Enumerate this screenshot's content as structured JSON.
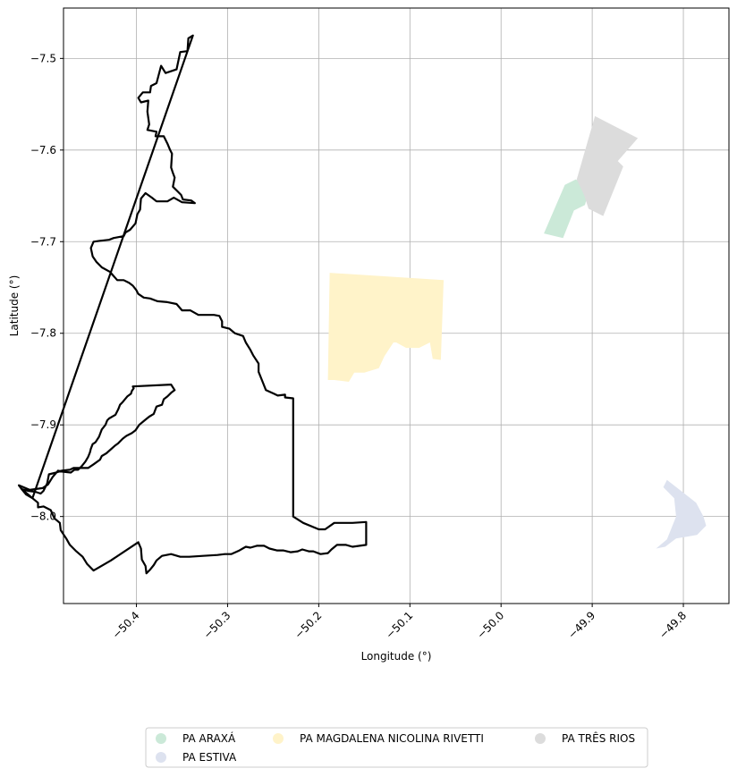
{
  "chart_data": {
    "type": "map",
    "xlabel": "Longitude (°)",
    "ylabel": "Latitude (°)",
    "xlim": [
      -50.48,
      -49.75
    ],
    "ylim": [
      -8.095,
      -7.445
    ],
    "x_ticks": [
      {
        "value": -50.4,
        "label": "−50.4"
      },
      {
        "value": -50.3,
        "label": "−50.3"
      },
      {
        "value": -50.2,
        "label": "−50.2"
      },
      {
        "value": -50.1,
        "label": "−50.1"
      },
      {
        "value": -50.0,
        "label": "−50.0"
      },
      {
        "value": -49.9,
        "label": "−49.9"
      },
      {
        "value": -49.8,
        "label": "−49.8"
      }
    ],
    "y_ticks": [
      {
        "value": -7.5,
        "label": "−7.5"
      },
      {
        "value": -7.6,
        "label": "−7.6"
      },
      {
        "value": -7.7,
        "label": "−7.7"
      },
      {
        "value": -7.8,
        "label": "−7.8"
      },
      {
        "value": -7.9,
        "label": "−7.9"
      },
      {
        "value": -8.0,
        "label": "−8.0"
      }
    ],
    "grid": true,
    "legend_position": "bottom-center",
    "boundary": {
      "color": "#000000",
      "points": [
        [
          -50.338,
          -7.475
        ],
        [
          -50.343,
          -7.478
        ],
        [
          -50.344,
          -7.492
        ],
        [
          -50.352,
          -7.493
        ],
        [
          -50.356,
          -7.512
        ],
        [
          -50.368,
          -7.516
        ],
        [
          -50.373,
          -7.508
        ],
        [
          -50.378,
          -7.527
        ],
        [
          -50.384,
          -7.53
        ],
        [
          -50.385,
          -7.537
        ],
        [
          -50.393,
          -7.537
        ],
        [
          -50.398,
          -7.543
        ],
        [
          -50.395,
          -7.548
        ],
        [
          -50.387,
          -7.546
        ],
        [
          -50.388,
          -7.558
        ],
        [
          -50.386,
          -7.572
        ],
        [
          -50.388,
          -7.578
        ],
        [
          -50.378,
          -7.58
        ],
        [
          -50.379,
          -7.585
        ],
        [
          -50.37,
          -7.585
        ],
        [
          -50.366,
          -7.593
        ],
        [
          -50.363,
          -7.6
        ],
        [
          -50.361,
          -7.604
        ],
        [
          -50.362,
          -7.619
        ],
        [
          -50.36,
          -7.625
        ],
        [
          -50.358,
          -7.63
        ],
        [
          -50.36,
          -7.64
        ],
        [
          -50.355,
          -7.645
        ],
        [
          -50.351,
          -7.649
        ],
        [
          -50.349,
          -7.654
        ],
        [
          -50.34,
          -7.655
        ],
        [
          -50.336,
          -7.658
        ],
        [
          -50.35,
          -7.657
        ],
        [
          -50.359,
          -7.652
        ],
        [
          -50.366,
          -7.656
        ],
        [
          -50.378,
          -7.656
        ],
        [
          -50.383,
          -7.652
        ],
        [
          -50.39,
          -7.647
        ],
        [
          -50.395,
          -7.653
        ],
        [
          -50.396,
          -7.665
        ],
        [
          -50.399,
          -7.67
        ],
        [
          -50.401,
          -7.68
        ],
        [
          -50.407,
          -7.687
        ],
        [
          -50.412,
          -7.69
        ],
        [
          -50.414,
          -7.694
        ],
        [
          -50.425,
          -7.696
        ],
        [
          -50.43,
          -7.698
        ],
        [
          -50.44,
          -7.699
        ],
        [
          -50.447,
          -7.7
        ],
        [
          -50.45,
          -7.707
        ],
        [
          -50.448,
          -7.716
        ],
        [
          -50.444,
          -7.722
        ],
        [
          -50.438,
          -7.728
        ],
        [
          -50.429,
          -7.733
        ],
        [
          -50.421,
          -7.742
        ],
        [
          -50.414,
          -7.742
        ],
        [
          -50.408,
          -7.745
        ],
        [
          -50.404,
          -7.748
        ],
        [
          -50.4,
          -7.753
        ],
        [
          -50.398,
          -7.757
        ],
        [
          -50.392,
          -7.761
        ],
        [
          -50.385,
          -7.762
        ],
        [
          -50.377,
          -7.765
        ],
        [
          -50.366,
          -7.766
        ],
        [
          -50.356,
          -7.768
        ],
        [
          -50.35,
          -7.775
        ],
        [
          -50.341,
          -7.775
        ],
        [
          -50.332,
          -7.78
        ],
        [
          -50.325,
          -7.78
        ],
        [
          -50.315,
          -7.78
        ],
        [
          -50.309,
          -7.781
        ],
        [
          -50.306,
          -7.787
        ],
        [
          -50.306,
          -7.793
        ],
        [
          -50.298,
          -7.795
        ],
        [
          -50.292,
          -7.8
        ],
        [
          -50.283,
          -7.803
        ],
        [
          -50.28,
          -7.81
        ],
        [
          -50.275,
          -7.818
        ],
        [
          -50.272,
          -7.824
        ],
        [
          -50.266,
          -7.833
        ],
        [
          -50.266,
          -7.842
        ],
        [
          -50.262,
          -7.852
        ],
        [
          -50.258,
          -7.862
        ],
        [
          -50.249,
          -7.866
        ],
        [
          -50.245,
          -7.868
        ],
        [
          -50.237,
          -7.867
        ],
        [
          -50.237,
          -7.87
        ],
        [
          -50.228,
          -7.871
        ],
        [
          -50.228,
          -7.905
        ],
        [
          -50.228,
          -8.0
        ],
        [
          -50.217,
          -8.007
        ],
        [
          -50.2,
          -8.014
        ],
        [
          -50.193,
          -8.014
        ],
        [
          -50.183,
          -8.007
        ],
        [
          -50.163,
          -8.007
        ],
        [
          -50.148,
          -8.006
        ],
        [
          -50.148,
          -8.031
        ],
        [
          -50.163,
          -8.033
        ],
        [
          -50.17,
          -8.031
        ],
        [
          -50.18,
          -8.031
        ],
        [
          -50.186,
          -8.036
        ],
        [
          -50.19,
          -8.04
        ],
        [
          -50.198,
          -8.041
        ],
        [
          -50.206,
          -8.038
        ],
        [
          -50.211,
          -8.038
        ],
        [
          -50.218,
          -8.036
        ],
        [
          -50.223,
          -8.038
        ],
        [
          -50.231,
          -8.039
        ],
        [
          -50.239,
          -8.037
        ],
        [
          -50.246,
          -8.037
        ],
        [
          -50.254,
          -8.035
        ],
        [
          -50.26,
          -8.032
        ],
        [
          -50.268,
          -8.032
        ],
        [
          -50.275,
          -8.034
        ],
        [
          -50.28,
          -8.033
        ],
        [
          -50.287,
          -8.037
        ],
        [
          -50.296,
          -8.041
        ],
        [
          -50.303,
          -8.041
        ],
        [
          -50.311,
          -8.042
        ],
        [
          -50.327,
          -8.043
        ],
        [
          -50.342,
          -8.044
        ],
        [
          -50.352,
          -8.044
        ],
        [
          -50.362,
          -8.041
        ],
        [
          -50.372,
          -8.043
        ],
        [
          -50.378,
          -8.048
        ],
        [
          -50.381,
          -8.053
        ],
        [
          -50.385,
          -8.058
        ],
        [
          -50.389,
          -8.062
        ],
        [
          -50.39,
          -8.054
        ],
        [
          -50.394,
          -8.047
        ],
        [
          -50.395,
          -8.035
        ],
        [
          -50.398,
          -8.028
        ],
        [
          -50.428,
          -8.048
        ],
        [
          -50.447,
          -8.059
        ],
        [
          -50.454,
          -8.052
        ],
        [
          -50.459,
          -8.044
        ],
        [
          -50.466,
          -8.038
        ],
        [
          -50.473,
          -8.031
        ],
        [
          -50.477,
          -8.024
        ],
        [
          -50.483,
          -8.015
        ],
        [
          -50.484,
          -8.007
        ],
        [
          -50.49,
          -8.002
        ],
        [
          -50.494,
          -7.993
        ],
        [
          -50.502,
          -7.989
        ],
        [
          -50.508,
          -7.99
        ],
        [
          -50.508,
          -7.985
        ],
        [
          -50.514,
          -7.98
        ],
        [
          -50.521,
          -7.976
        ],
        [
          -50.526,
          -7.97
        ],
        [
          -50.519,
          -7.972
        ],
        [
          -50.511,
          -7.973
        ],
        [
          -50.505,
          -7.975
        ],
        [
          -50.502,
          -7.972
        ],
        [
          -50.498,
          -7.964
        ],
        [
          -50.496,
          -7.954
        ],
        [
          -50.488,
          -7.952
        ],
        [
          -50.482,
          -7.95
        ],
        [
          -50.473,
          -7.949
        ],
        [
          -50.469,
          -7.947
        ],
        [
          -50.461,
          -7.947
        ],
        [
          -50.453,
          -7.947
        ],
        [
          -50.447,
          -7.943
        ],
        [
          -50.44,
          -7.938
        ],
        [
          -50.438,
          -7.934
        ],
        [
          -50.433,
          -7.931
        ],
        [
          -50.424,
          -7.923
        ],
        [
          -50.42,
          -7.92
        ],
        [
          -50.415,
          -7.915
        ],
        [
          -50.411,
          -7.912
        ],
        [
          -50.405,
          -7.909
        ],
        [
          -50.401,
          -7.906
        ],
        [
          -50.397,
          -7.9
        ],
        [
          -50.391,
          -7.895
        ],
        [
          -50.386,
          -7.891
        ],
        [
          -50.381,
          -7.888
        ],
        [
          -50.378,
          -7.88
        ],
        [
          -50.372,
          -7.878
        ],
        [
          -50.37,
          -7.872
        ],
        [
          -50.366,
          -7.869
        ],
        [
          -50.362,
          -7.865
        ],
        [
          -50.358,
          -7.862
        ],
        [
          -50.362,
          -7.856
        ],
        [
          -50.404,
          -7.858
        ],
        [
          -50.403,
          -7.86
        ],
        [
          -50.405,
          -7.863
        ],
        [
          -50.406,
          -7.866
        ],
        [
          -50.41,
          -7.869
        ],
        [
          -50.415,
          -7.875
        ],
        [
          -50.418,
          -7.878
        ],
        [
          -50.42,
          -7.883
        ],
        [
          -50.423,
          -7.889
        ],
        [
          -50.43,
          -7.893
        ],
        [
          -50.432,
          -7.895
        ],
        [
          -50.434,
          -7.9
        ],
        [
          -50.438,
          -7.905
        ],
        [
          -50.441,
          -7.913
        ],
        [
          -50.445,
          -7.919
        ],
        [
          -50.448,
          -7.921
        ],
        [
          -50.45,
          -7.926
        ],
        [
          -50.451,
          -7.93
        ],
        [
          -50.453,
          -7.935
        ],
        [
          -50.456,
          -7.94
        ],
        [
          -50.46,
          -7.945
        ],
        [
          -50.464,
          -7.949
        ],
        [
          -50.468,
          -7.949
        ],
        [
          -50.472,
          -7.952
        ],
        [
          -50.481,
          -7.951
        ],
        [
          -50.486,
          -7.95
        ],
        [
          -50.492,
          -7.957
        ],
        [
          -50.497,
          -7.965
        ],
        [
          -50.503,
          -7.969
        ],
        [
          -50.51,
          -7.97
        ],
        [
          -50.517,
          -7.971
        ],
        [
          -50.524,
          -7.968
        ],
        [
          -50.529,
          -7.966
        ],
        [
          -50.526,
          -7.97
        ],
        [
          -50.52,
          -7.975
        ],
        [
          -50.514,
          -7.98
        ]
      ]
    },
    "boundary_note": "",
    "regions": [
      {
        "name": "PA ARAXÁ",
        "color": "#cbe9d8",
        "points": [
          [
            -49.953,
            -7.691
          ],
          [
            -49.932,
            -7.696
          ],
          [
            -49.92,
            -7.666
          ],
          [
            -49.908,
            -7.66
          ],
          [
            -49.903,
            -7.642
          ],
          [
            -49.918,
            -7.632
          ],
          [
            -49.93,
            -7.638
          ]
        ]
      },
      {
        "name": "PA ESTIVA",
        "color": "#dde2ef",
        "points": [
          [
            -49.83,
            -8.035
          ],
          [
            -49.818,
            -8.025
          ],
          [
            -49.808,
            -8.0
          ],
          [
            -49.81,
            -7.98
          ],
          [
            -49.822,
            -7.968
          ],
          [
            -49.818,
            -7.96
          ],
          [
            -49.8,
            -7.974
          ],
          [
            -49.786,
            -7.985
          ],
          [
            -49.778,
            -8.0
          ],
          [
            -49.775,
            -8.01
          ],
          [
            -49.785,
            -8.02
          ],
          [
            -49.808,
            -8.024
          ],
          [
            -49.82,
            -8.033
          ]
        ]
      },
      {
        "name": "PA MAGDALENA NICOLINA RIVETTI",
        "color": "#fff3c9",
        "points": [
          [
            -50.188,
            -7.734
          ],
          [
            -50.063,
            -7.742
          ],
          [
            -50.066,
            -7.829
          ],
          [
            -50.075,
            -7.828
          ],
          [
            -50.078,
            -7.81
          ],
          [
            -50.09,
            -7.816
          ],
          [
            -50.104,
            -7.816
          ],
          [
            -50.115,
            -7.81
          ],
          [
            -50.118,
            -7.81
          ],
          [
            -50.128,
            -7.825
          ],
          [
            -50.134,
            -7.838
          ],
          [
            -50.15,
            -7.843
          ],
          [
            -50.161,
            -7.843
          ],
          [
            -50.167,
            -7.853
          ],
          [
            -50.183,
            -7.851
          ],
          [
            -50.19,
            -7.851
          ]
        ]
      },
      {
        "name": "PA TRÊS RIOS",
        "color": "#dcdcdc",
        "points": [
          [
            -49.917,
            -7.632
          ],
          [
            -49.897,
            -7.563
          ],
          [
            -49.85,
            -7.587
          ],
          [
            -49.872,
            -7.612
          ],
          [
            -49.866,
            -7.618
          ],
          [
            -49.888,
            -7.672
          ],
          [
            -49.904,
            -7.664
          ],
          [
            -49.909,
            -7.649
          ]
        ]
      }
    ],
    "legend": [
      {
        "label": "PA ARAXÁ",
        "color": "#cbe9d8"
      },
      {
        "label": "PA ESTIVA",
        "color": "#dde2ef"
      },
      {
        "label": "PA MAGDALENA NICOLINA RIVETTI",
        "color": "#fff3c9"
      },
      {
        "label": "PA TRÊS RIOS",
        "color": "#dcdcdc"
      }
    ]
  }
}
